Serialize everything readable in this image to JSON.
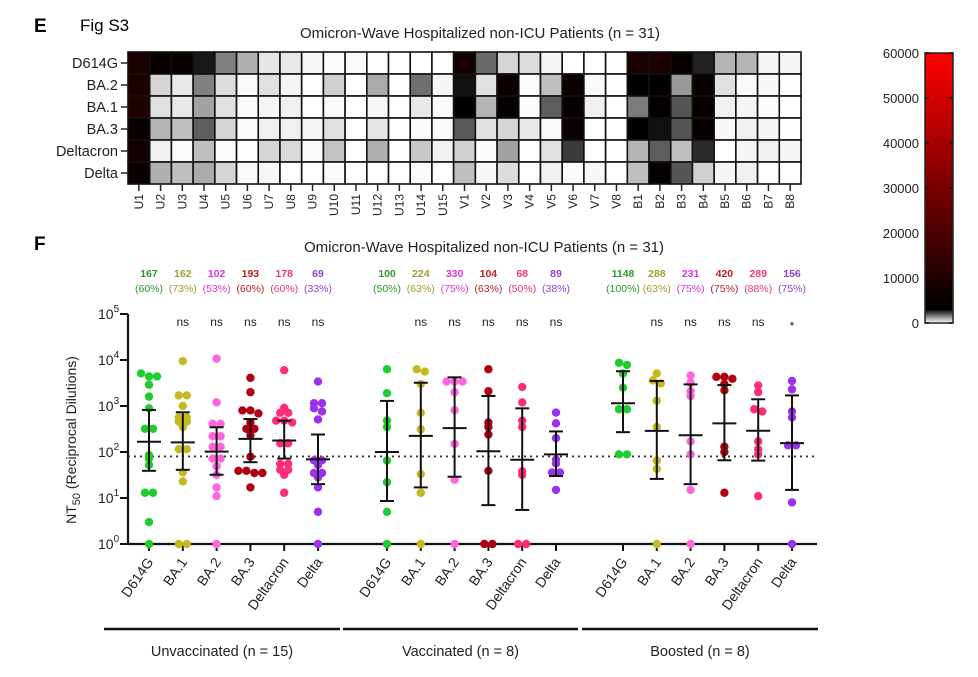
{
  "panel_e": {
    "label": "E",
    "fig_label": "Fig S3",
    "title": "Omicron-Wave Hospitalized non-ICU Patients (n = 31)"
  },
  "panel_f": {
    "label": "F",
    "title": "Omicron-Wave Hospitalized non-ICU Patients (n = 31)"
  },
  "colors": {
    "D614G": "#1fcc2e",
    "BA.1": "#c4b91e",
    "BA.2": "#ff66dd",
    "BA.3": "#b00010",
    "Deltacron": "#ff2b7b",
    "Delta": "#9b30ee"
  },
  "label_colors": {
    "D614G": "#2a9a2a",
    "BA.1": "#a39b2c",
    "BA.2": "#dd33dd",
    "BA.3": "#bb2222",
    "Deltacron": "#ee3377",
    "Delta": "#9440cc"
  },
  "chart_data": [
    {
      "type": "heatmap",
      "title": "Omicron-Wave Hospitalized non-ICU Patients (n = 31)",
      "rows": [
        "D614G",
        "BA.2",
        "BA.1",
        "BA.3",
        "Deltacron",
        "Delta"
      ],
      "columns": [
        "U1",
        "U2",
        "U3",
        "U4",
        "U5",
        "U6",
        "U7",
        "U8",
        "U9",
        "U10",
        "U11",
        "U12",
        "U13",
        "U14",
        "U15",
        "V1",
        "V2",
        "V3",
        "V4",
        "V5",
        "V6",
        "V7",
        "V8",
        "B1",
        "B2",
        "B3",
        "B4",
        "B5",
        "B6",
        "B7",
        "B8"
      ],
      "values": [
        [
          9000,
          5000,
          5000,
          2700,
          1500,
          930,
          300,
          270,
          80,
          30,
          60,
          0,
          0,
          0,
          0,
          8000,
          1750,
          500,
          400,
          120,
          0,
          0,
          0,
          9000,
          9500,
          5500,
          2600,
          880,
          880,
          120,
          120
        ],
        [
          10000,
          500,
          270,
          1500,
          400,
          60,
          360,
          120,
          0,
          550,
          0,
          1000,
          0,
          1700,
          120,
          2800,
          360,
          6000,
          30,
          750,
          6000,
          60,
          0,
          3000,
          4000,
          1200,
          5500,
          360,
          60,
          80,
          0
        ],
        [
          10500,
          360,
          270,
          1100,
          360,
          60,
          120,
          180,
          0,
          60,
          0,
          80,
          0,
          270,
          60,
          3000,
          880,
          4500,
          30,
          1900,
          4500,
          180,
          0,
          1550,
          4500,
          2000,
          5500,
          180,
          120,
          40,
          0
        ],
        [
          5000,
          880,
          750,
          1900,
          500,
          60,
          180,
          180,
          120,
          360,
          0,
          300,
          0,
          60,
          60,
          1950,
          360,
          500,
          270,
          60,
          6000,
          0,
          0,
          4000,
          2800,
          2000,
          5000,
          80,
          180,
          120,
          0
        ],
        [
          7000,
          180,
          30,
          750,
          30,
          0,
          500,
          450,
          60,
          700,
          0,
          930,
          0,
          650,
          180,
          550,
          30,
          1100,
          0,
          360,
          2300,
          0,
          0,
          880,
          1900,
          750,
          2500,
          0,
          120,
          180,
          120
        ],
        [
          5500,
          930,
          750,
          1000,
          500,
          60,
          80,
          0,
          0,
          60,
          0,
          0,
          0,
          60,
          0,
          750,
          80,
          400,
          0,
          180,
          60,
          80,
          0,
          750,
          4500,
          2000,
          550,
          120,
          180,
          0,
          0
        ]
      ],
      "colorbar": {
        "min": 0,
        "max": 60000,
        "ticks": [
          0,
          10000,
          20000,
          30000,
          40000,
          50000,
          60000
        ],
        "colors": [
          "#ffffff",
          "#000000",
          "#ff0000"
        ]
      }
    },
    {
      "type": "scatter",
      "title": "Omicron-Wave Hospitalized non-ICU Patients (n = 31)",
      "ylabel": {
        "main": "NT",
        "sub": "50",
        "rest": " (Reciprocal  Dilutions)"
      },
      "yscale": "log",
      "ylim": [
        1,
        100000
      ],
      "yticks": [
        {
          "base": "10",
          "exp": "0"
        },
        {
          "base": "10",
          "exp": "1"
        },
        {
          "base": "10",
          "exp": "2"
        },
        {
          "base": "10",
          "exp": "3"
        },
        {
          "base": "10",
          "exp": "4"
        },
        {
          "base": "10",
          "exp": "5"
        }
      ],
      "threshold": 80,
      "groups": [
        {
          "label": "Unvaccinated (n = 15)",
          "categories": [
            {
              "name": "D614G",
              "gmt": "167",
              "pct": "(60%)",
              "sig": "",
              "mean": 167,
              "ci": [
                39,
                820
              ],
              "points": [
                5100,
                4400,
                4400,
                2900,
                1600,
                890,
                320,
                320,
                85,
                72,
                52,
                13,
                13,
                3,
                1
              ]
            },
            {
              "name": "BA.1",
              "gmt": "162",
              "pct": "(73%)",
              "sig": "ns",
              "mean": 162,
              "ci": [
                41,
                730
              ],
              "points": [
                9500,
                1700,
                1700,
                1000,
                560,
                560,
                460,
                460,
                350,
                115,
                115,
                36,
                23,
                1,
                1
              ]
            },
            {
              "name": "BA.2",
              "gmt": "102",
              "pct": "(53%)",
              "sig": "ns",
              "mean": 102,
              "ci": [
                32,
                345
              ],
              "points": [
                10700,
                1200,
                410,
                410,
                220,
                220,
                130,
                130,
                72,
                72,
                49,
                32,
                17,
                11,
                1
              ]
            },
            {
              "name": "BA.3",
              "gmt": "193",
              "pct": "(60%)",
              "sig": "ns",
              "mean": 193,
              "ci": [
                60,
                520
              ],
              "points": [
                4100,
                2000,
                800,
                800,
                690,
                440,
                320,
                320,
                230,
                79,
                39,
                39,
                35,
                35,
                17
              ]
            },
            {
              "name": "Deltacron",
              "gmt": "178",
              "pct": "(60%)",
              "sig": "ns",
              "mean": 178,
              "ci": [
                72,
                480
              ],
              "points": [
                6000,
                910,
                710,
                710,
                480,
                480,
                440,
                155,
                155,
                55,
                55,
                41,
                41,
                32,
                13
              ]
            },
            {
              "name": "Delta",
              "gmt": "69",
              "pct": "(33%)",
              "sig": "ns",
              "mean": 69,
              "ci": [
                20,
                240
              ],
              "points": [
                3400,
                1150,
                1150,
                890,
                760,
                510,
                66,
                66,
                52,
                35,
                35,
                28,
                17,
                5,
                1
              ]
            }
          ]
        },
        {
          "label": "Vaccinated (n = 8)",
          "categories": [
            {
              "name": "D614G",
              "gmt": "100",
              "pct": "(50%)",
              "sig": "",
              "mean": 100,
              "ci": [
                8.6,
                1290
              ],
              "points": [
                6300,
                1900,
                480,
                350,
                65,
                22,
                5,
                1
              ]
            },
            {
              "name": "BA.1",
              "gmt": "224",
              "pct": "(63%)",
              "sig": "ns",
              "mean": 224,
              "ci": [
                17,
                3200
              ],
              "points": [
                6300,
                5600,
                3000,
                710,
                310,
                33,
                13,
                1
              ]
            },
            {
              "name": "BA.2",
              "gmt": "330",
              "pct": "(75%)",
              "sig": "ns",
              "mean": 330,
              "ci": [
                29,
                4200
              ],
              "points": [
                3400,
                3400,
                3400,
                2000,
                810,
                150,
                25,
                1
              ]
            },
            {
              "name": "BA.3",
              "gmt": "104",
              "pct": "(63%)",
              "sig": "ns",
              "mean": 104,
              "ci": [
                7,
                1650
              ],
              "points": [
                6300,
                2100,
                440,
                350,
                240,
                39,
                1,
                1
              ]
            },
            {
              "name": "Deltacron",
              "gmt": "68",
              "pct": "(50%)",
              "sig": "ns",
              "mean": 68,
              "ci": [
                5.5,
                890
              ],
              "points": [
                2600,
                1200,
                480,
                350,
                38,
                32,
                1,
                1
              ]
            },
            {
              "name": "Delta",
              "gmt": "89",
              "pct": "(38%)",
              "sig": "ns",
              "mean": 89,
              "ci": [
                30,
                280
              ],
              "points": [
                720,
                420,
                200,
                69,
                56,
                36,
                36,
                15
              ]
            }
          ]
        },
        {
          "label": "Boosted (n = 8)",
          "categories": [
            {
              "name": "D614G",
              "gmt": "1148",
              "pct": "(100%)",
              "sig": "",
              "mean": 1148,
              "ci": [
                270,
                5700
              ],
              "points": [
                8700,
                7800,
                5100,
                2500,
                850,
                850,
                89,
                89
              ]
            },
            {
              "name": "BA.1",
              "gmt": "288",
              "pct": "(63%)",
              "sig": "ns",
              "mean": 288,
              "ci": [
                26,
                3500
              ],
              "points": [
                5100,
                3600,
                3100,
                1300,
                350,
                65,
                43,
                1
              ]
            },
            {
              "name": "BA.2",
              "gmt": "231",
              "pct": "(75%)",
              "sig": "ns",
              "mean": 231,
              "ci": [
                20,
                2950
              ],
              "points": [
                4600,
                3200,
                2100,
                1650,
                170,
                89,
                15,
                1
              ]
            },
            {
              "name": "BA.3",
              "gmt": "420",
              "pct": "(75%)",
              "sig": "ns",
              "mean": 420,
              "ci": [
                66,
                2850
              ],
              "points": [
                4300,
                4300,
                3900,
                3000,
                2200,
                130,
                100,
                13
              ]
            },
            {
              "name": "Deltacron",
              "gmt": "289",
              "pct": "(88%)",
              "sig": "ns",
              "mean": 289,
              "ci": [
                65,
                1400
              ],
              "points": [
                2800,
                2000,
                850,
                760,
                170,
                115,
                89,
                11
              ]
            },
            {
              "name": "Delta",
              "gmt": "156",
              "pct": "(75%)",
              "sig": "*",
              "mean": 156,
              "ci": [
                15,
                1700
              ],
              "points": [
                3500,
                2300,
                760,
                560,
                140,
                140,
                8,
                1
              ]
            }
          ]
        }
      ]
    }
  ]
}
